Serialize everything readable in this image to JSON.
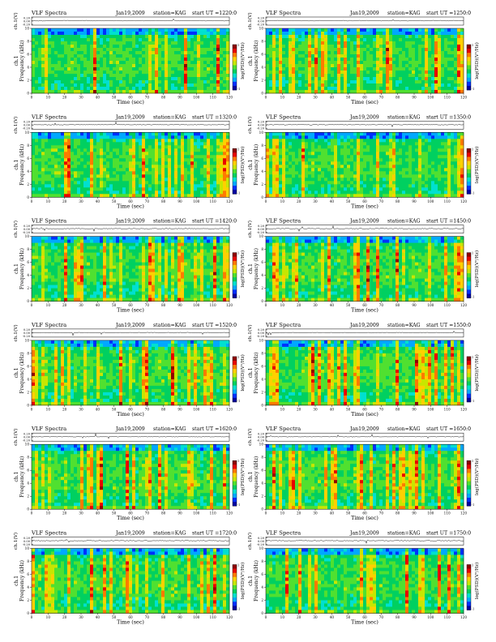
{
  "figure": {
    "type": "VLF spectrogram grid",
    "colormap": [
      "#0000a0",
      "#0030ff",
      "#00a8ff",
      "#00e0d0",
      "#00d060",
      "#50e030",
      "#c8e600",
      "#ffd000",
      "#ff7a00",
      "#e80000",
      "#900000"
    ]
  },
  "chart_data": [
    {
      "type": "heatmap",
      "title": "VLF Spectra",
      "date": "Jan19,2009",
      "station": "station=KAG",
      "start": "start UT =1220:0",
      "ts_ylabel": "ch.1(V)",
      "ts_ticks": [
        "0.20",
        "0.00",
        "-0.20"
      ],
      "ylabel": "Frequency (kHz)",
      "ylabel_ch": "ch.1",
      "xlabel": "Time (sec)",
      "xticks": [
        "0",
        "10",
        "20",
        "30",
        "40",
        "50",
        "60",
        "70",
        "80",
        "90",
        "100",
        "110",
        "120"
      ],
      "yticks": [
        "0",
        "2",
        "4",
        "6",
        "8",
        "10"
      ],
      "xlim": [
        0,
        120
      ],
      "ylim": [
        0,
        10
      ],
      "colorbar_label": "log(PSD)(V²/Hz)",
      "colorbar_ticks": [
        "1",
        "-1"
      ]
    },
    {
      "type": "heatmap",
      "title": "VLF Spectra",
      "date": "Jan19,2009",
      "station": "station=KAG",
      "start": "start UT =1250:0",
      "ts_ylabel": "ch.1(V)",
      "ts_ticks": [
        "0.20",
        "0.00",
        "-0.20"
      ],
      "ylabel": "Frequency (kHz)",
      "ylabel_ch": "ch.1",
      "xlabel": "Time (sec)",
      "xticks": [
        "0",
        "10",
        "20",
        "30",
        "40",
        "50",
        "60",
        "70",
        "80",
        "90",
        "100",
        "110",
        "120"
      ],
      "yticks": [
        "0",
        "2",
        "4",
        "6",
        "8",
        "10"
      ],
      "xlim": [
        0,
        120
      ],
      "ylim": [
        0,
        10
      ],
      "colorbar_label": "log(PSD)(V²/Hz)",
      "colorbar_ticks": [
        "1",
        "-1"
      ]
    },
    {
      "type": "heatmap",
      "title": "VLF Spectra",
      "date": "Jan19,2009",
      "station": "station=KAG",
      "start": "start UT =1320:0",
      "ts_ylabel": "ch.1(V)",
      "ts_ticks": [
        "0.20",
        "0.00",
        "-0.20"
      ],
      "ylabel": "Frequency (kHz)",
      "ylabel_ch": "ch.1",
      "xlabel": "Time (sec)",
      "xticks": [
        "0",
        "10",
        "20",
        "30",
        "40",
        "50",
        "60",
        "70",
        "80",
        "90",
        "100",
        "110",
        "120"
      ],
      "yticks": [
        "0",
        "2",
        "4",
        "6",
        "8",
        "10"
      ],
      "xlim": [
        0,
        120
      ],
      "ylim": [
        0,
        10
      ],
      "colorbar_label": "log(PSD)(V²/Hz)",
      "colorbar_ticks": [
        "1",
        "-1"
      ]
    },
    {
      "type": "heatmap",
      "title": "VLF Spectra",
      "date": "Jan19,2009",
      "station": "station=KAG",
      "start": "start UT =1350:0",
      "ts_ylabel": "ch.1(V)",
      "ts_ticks": [
        "0.20",
        "0.00",
        "-0.20"
      ],
      "ylabel": "Frequency (kHz)",
      "ylabel_ch": "ch.1",
      "xlabel": "Time (sec)",
      "xticks": [
        "0",
        "10",
        "20",
        "30",
        "40",
        "50",
        "60",
        "70",
        "80",
        "90",
        "100",
        "110",
        "120"
      ],
      "yticks": [
        "0",
        "2",
        "4",
        "6",
        "8",
        "10"
      ],
      "xlim": [
        0,
        120
      ],
      "ylim": [
        0,
        10
      ],
      "colorbar_label": "log(PSD)(V²/Hz)",
      "colorbar_ticks": [
        "1",
        "-1"
      ]
    },
    {
      "type": "heatmap",
      "title": "VLF Spectra",
      "date": "Jan19,2009",
      "station": "station=KAG",
      "start": "start UT =1420:0",
      "ts_ylabel": "ch.1(V)",
      "ts_ticks": [
        "0.20",
        "0.00",
        "-0.20"
      ],
      "ylabel": "Frequency (kHz)",
      "ylabel_ch": "ch.1",
      "xlabel": "Time (sec)",
      "xticks": [
        "0",
        "10",
        "20",
        "30",
        "40",
        "50",
        "60",
        "70",
        "80",
        "90",
        "100",
        "110",
        "120"
      ],
      "yticks": [
        "0",
        "2",
        "4",
        "6",
        "8",
        "10"
      ],
      "xlim": [
        0,
        120
      ],
      "ylim": [
        0,
        10
      ],
      "colorbar_label": "log(PSD)(V²/Hz)",
      "colorbar_ticks": [
        "1",
        "-1"
      ]
    },
    {
      "type": "heatmap",
      "title": "VLF Spectra",
      "date": "Jan19,2009",
      "station": "station=KAG",
      "start": "start UT =1450:0",
      "ts_ylabel": "ch.1(V)",
      "ts_ticks": [
        "0.20",
        "0.00",
        "-0.20"
      ],
      "ylabel": "Frequency (kHz)",
      "ylabel_ch": "ch.1",
      "xlabel": "Time (sec)",
      "xticks": [
        "0",
        "10",
        "20",
        "30",
        "40",
        "50",
        "60",
        "70",
        "80",
        "90",
        "100",
        "110",
        "120"
      ],
      "yticks": [
        "0",
        "2",
        "4",
        "6",
        "8",
        "10"
      ],
      "xlim": [
        0,
        120
      ],
      "ylim": [
        0,
        10
      ],
      "colorbar_label": "log(PSD)(V²/Hz)",
      "colorbar_ticks": [
        "1",
        "-1"
      ]
    },
    {
      "type": "heatmap",
      "title": "VLF Spectra",
      "date": "Jan19,2009",
      "station": "station=KAG",
      "start": "start UT =1520:0",
      "ts_ylabel": "ch.1(V)",
      "ts_ticks": [
        "0.20",
        "0.00",
        "-0.20"
      ],
      "ylabel": "Frequency (kHz)",
      "ylabel_ch": "ch.1",
      "xlabel": "Time (sec)",
      "xticks": [
        "0",
        "10",
        "20",
        "30",
        "40",
        "50",
        "60",
        "70",
        "80",
        "90",
        "100",
        "110",
        "120"
      ],
      "yticks": [
        "0",
        "2",
        "4",
        "6",
        "8",
        "10"
      ],
      "xlim": [
        0,
        120
      ],
      "ylim": [
        0,
        10
      ],
      "colorbar_label": "log(PSD)(V²/Hz)",
      "colorbar_ticks": [
        "1",
        "-1"
      ]
    },
    {
      "type": "heatmap",
      "title": "VLF Spectra",
      "date": "Jan19,2009",
      "station": "station=KAG",
      "start": "start UT =1550:0",
      "ts_ylabel": "ch.1(V)",
      "ts_ticks": [
        "0.20",
        "0.00",
        "-0.20"
      ],
      "ylabel": "Frequency (kHz)",
      "ylabel_ch": "ch.1",
      "xlabel": "Time (sec)",
      "xticks": [
        "0",
        "10",
        "20",
        "30",
        "40",
        "50",
        "60",
        "70",
        "80",
        "90",
        "100",
        "110",
        "120"
      ],
      "yticks": [
        "0",
        "2",
        "4",
        "6",
        "8",
        "10"
      ],
      "xlim": [
        0,
        120
      ],
      "ylim": [
        0,
        10
      ],
      "colorbar_label": "log(PSD)(V²/Hz)",
      "colorbar_ticks": [
        "1",
        "-1"
      ]
    },
    {
      "type": "heatmap",
      "title": "VLF Spectra",
      "date": "Jan19,2009",
      "station": "station=KAG",
      "start": "start UT =1620:0",
      "ts_ylabel": "ch.1(V)",
      "ts_ticks": [
        "0.20",
        "0.00",
        "-0.20"
      ],
      "ylabel": "Frequency (kHz)",
      "ylabel_ch": "ch.1",
      "xlabel": "Time (sec)",
      "xticks": [
        "0",
        "10",
        "20",
        "30",
        "40",
        "50",
        "60",
        "70",
        "80",
        "90",
        "100",
        "110",
        "120"
      ],
      "yticks": [
        "0",
        "2",
        "4",
        "6",
        "8",
        "10"
      ],
      "xlim": [
        0,
        120
      ],
      "ylim": [
        0,
        10
      ],
      "colorbar_label": "log(PSD)(V²/Hz)",
      "colorbar_ticks": [
        "1",
        "-1"
      ]
    },
    {
      "type": "heatmap",
      "title": "VLF Spectra",
      "date": "Jan19,2009",
      "station": "station=KAG",
      "start": "start UT =1650:0",
      "ts_ylabel": "ch.1(V)",
      "ts_ticks": [
        "0.20",
        "0.00",
        "-0.20"
      ],
      "ylabel": "Frequency (kHz)",
      "ylabel_ch": "ch.1",
      "xlabel": "Time (sec)",
      "xticks": [
        "0",
        "10",
        "20",
        "30",
        "40",
        "50",
        "60",
        "70",
        "80",
        "90",
        "100",
        "110",
        "120"
      ],
      "yticks": [
        "0",
        "2",
        "4",
        "6",
        "8",
        "10"
      ],
      "xlim": [
        0,
        120
      ],
      "ylim": [
        0,
        10
      ],
      "colorbar_label": "log(PSD)(V²/Hz)",
      "colorbar_ticks": [
        "1",
        "-1"
      ]
    },
    {
      "type": "heatmap",
      "title": "VLF Spectra",
      "date": "Jan19,2009",
      "station": "station=KAG",
      "start": "start UT =1720:0",
      "ts_ylabel": "ch.1(V)",
      "ts_ticks": [
        "0.20",
        "0.00",
        "-0.20"
      ],
      "ylabel": "Frequency (kHz)",
      "ylabel_ch": "ch.1",
      "xlabel": "Time (sec)",
      "xticks": [
        "0",
        "10",
        "20",
        "30",
        "40",
        "50",
        "60",
        "70",
        "80",
        "90",
        "100",
        "110",
        "120"
      ],
      "yticks": [
        "0",
        "2",
        "4",
        "6",
        "8",
        "10"
      ],
      "xlim": [
        0,
        120
      ],
      "ylim": [
        0,
        10
      ],
      "colorbar_label": "log(PSD)(V²/Hz)",
      "colorbar_ticks": [
        "1",
        "-1"
      ]
    },
    {
      "type": "heatmap",
      "title": "VLF Spectra",
      "date": "Jan19,2009",
      "station": "station=KAG",
      "start": "start UT =1750:0",
      "ts_ylabel": "ch.1(V)",
      "ts_ticks": [
        "0.20",
        "0.00",
        "-0.20"
      ],
      "ylabel": "Frequency (kHz)",
      "ylabel_ch": "ch.1",
      "xlabel": "Time (sec)",
      "xticks": [
        "0",
        "10",
        "20",
        "30",
        "40",
        "50",
        "60",
        "70",
        "80",
        "90",
        "100",
        "110",
        "120"
      ],
      "yticks": [
        "0",
        "2",
        "4",
        "6",
        "8",
        "10"
      ],
      "xlim": [
        0,
        120
      ],
      "ylim": [
        0,
        10
      ],
      "colorbar_label": "log(PSD)(V²/Hz)",
      "colorbar_ticks": [
        "1",
        "-1"
      ]
    }
  ]
}
